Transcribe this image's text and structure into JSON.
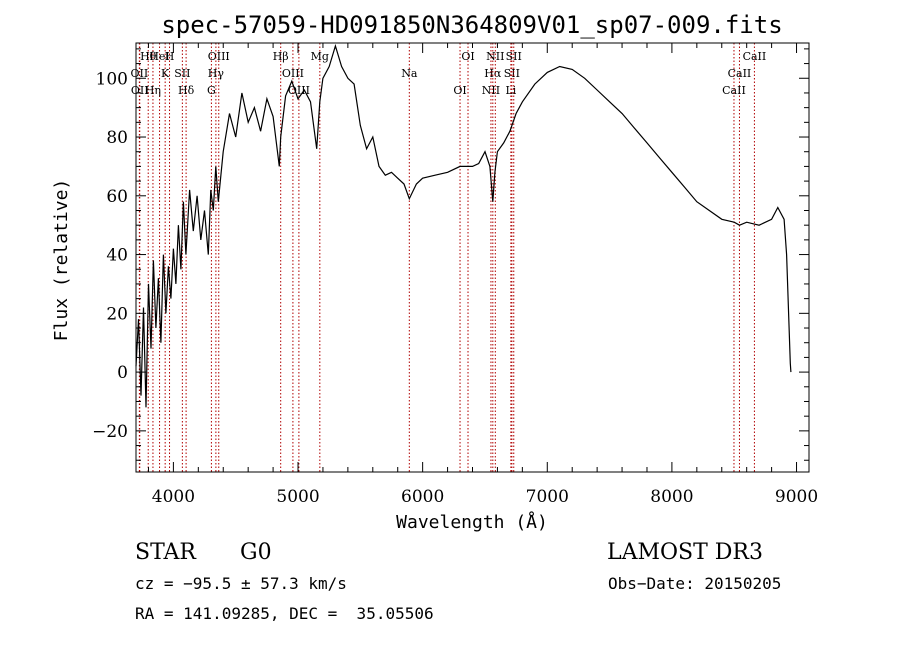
{
  "chart_data": {
    "type": "line",
    "title": "spec-57059-HD091850N364809V01_sp07-009.fits",
    "xlabel": "Wavelength (Å)",
    "ylabel": "Flux (relative)",
    "xlim": [
      3700,
      9100
    ],
    "ylim": [
      -34,
      112
    ],
    "xticks": [
      4000,
      5000,
      6000,
      7000,
      8000,
      9000
    ],
    "yticks": [
      -20,
      0,
      20,
      40,
      60,
      80,
      100
    ],
    "series": [
      {
        "name": "spectrum",
        "x": [
          3700,
          3720,
          3740,
          3760,
          3780,
          3800,
          3820,
          3840,
          3860,
          3880,
          3900,
          3920,
          3940,
          3960,
          3980,
          4000,
          4020,
          4040,
          4060,
          4080,
          4100,
          4130,
          4160,
          4190,
          4220,
          4250,
          4280,
          4300,
          4320,
          4340,
          4360,
          4400,
          4450,
          4500,
          4550,
          4600,
          4650,
          4700,
          4750,
          4800,
          4850,
          4861,
          4900,
          4950,
          5000,
          5050,
          5100,
          5150,
          5175,
          5200,
          5250,
          5300,
          5350,
          5400,
          5450,
          5500,
          5550,
          5600,
          5650,
          5700,
          5750,
          5800,
          5850,
          5893,
          5950,
          6000,
          6100,
          6200,
          6300,
          6400,
          6450,
          6500,
          6540,
          6563,
          6580,
          6600,
          6650,
          6700,
          6750,
          6800,
          6900,
          7000,
          7100,
          7200,
          7300,
          7400,
          7500,
          7600,
          7700,
          7800,
          7900,
          8000,
          8100,
          8200,
          8300,
          8400,
          8500,
          8542,
          8600,
          8700,
          8800,
          8850,
          8900,
          8920,
          8940,
          8950,
          8955
        ],
        "y": [
          2,
          18,
          -8,
          22,
          -12,
          30,
          8,
          38,
          15,
          32,
          10,
          40,
          20,
          36,
          25,
          42,
          30,
          50,
          35,
          58,
          40,
          62,
          48,
          60,
          45,
          55,
          40,
          62,
          55,
          70,
          58,
          75,
          88,
          80,
          95,
          85,
          90,
          82,
          93,
          87,
          70,
          80,
          94,
          99,
          93,
          96,
          92,
          76,
          92,
          100,
          104,
          111,
          104,
          100,
          98,
          84,
          76,
          80,
          70,
          67,
          68,
          66,
          64,
          59,
          64,
          66,
          67,
          68,
          70,
          70,
          71,
          75,
          70,
          58,
          68,
          75,
          78,
          82,
          88,
          92,
          98,
          102,
          104,
          103,
          100,
          96,
          92,
          88,
          83,
          78,
          73,
          68,
          63,
          58,
          55,
          52,
          51,
          50,
          51,
          50,
          52,
          56,
          52,
          40,
          15,
          3,
          0
        ]
      }
    ],
    "spectral_lines": [
      {
        "label": "Hθ",
        "wavelength": 3798
      },
      {
        "label": "OII",
        "wavelength": 3727
      },
      {
        "label": "OII",
        "wavelength": 3730
      },
      {
        "label": "HeI",
        "wavelength": 3889
      },
      {
        "label": "K",
        "wavelength": 3934
      },
      {
        "label": "Hη",
        "wavelength": 3836
      },
      {
        "label": "H",
        "wavelength": 3969
      },
      {
        "label": "SII",
        "wavelength": 4072
      },
      {
        "label": "Hδ",
        "wavelength": 4102
      },
      {
        "label": "OIII",
        "wavelength": 4364
      },
      {
        "label": "Hγ",
        "wavelength": 4341
      },
      {
        "label": "G",
        "wavelength": 4305
      },
      {
        "label": "Hβ",
        "wavelength": 4861
      },
      {
        "label": "OIII",
        "wavelength": 4959
      },
      {
        "label": "OIII",
        "wavelength": 5007
      },
      {
        "label": "Mg",
        "wavelength": 5175
      },
      {
        "label": "Na",
        "wavelength": 5893
      },
      {
        "label": "OI",
        "wavelength": 6300
      },
      {
        "label": "OI",
        "wavelength": 6364
      },
      {
        "label": "Hα",
        "wavelength": 6563
      },
      {
        "label": "NII",
        "wavelength": 6548
      },
      {
        "label": "NII",
        "wavelength": 6583
      },
      {
        "label": "SII",
        "wavelength": 6716
      },
      {
        "label": "Li",
        "wavelength": 6708
      },
      {
        "label": "SII",
        "wavelength": 6731
      },
      {
        "label": "CaII",
        "wavelength": 8542
      },
      {
        "label": "CaII",
        "wavelength": 8498
      },
      {
        "label": "CaII",
        "wavelength": 8662
      }
    ]
  },
  "info": {
    "object_class": "STAR",
    "subclass": "G0",
    "survey": "LAMOST DR3",
    "redshift": "cz = −95.5 ± 57.3 km/s",
    "obs_date": "Obs−Date: 20150205",
    "coords": "RA = 141.09285, DEC =  35.05506"
  }
}
